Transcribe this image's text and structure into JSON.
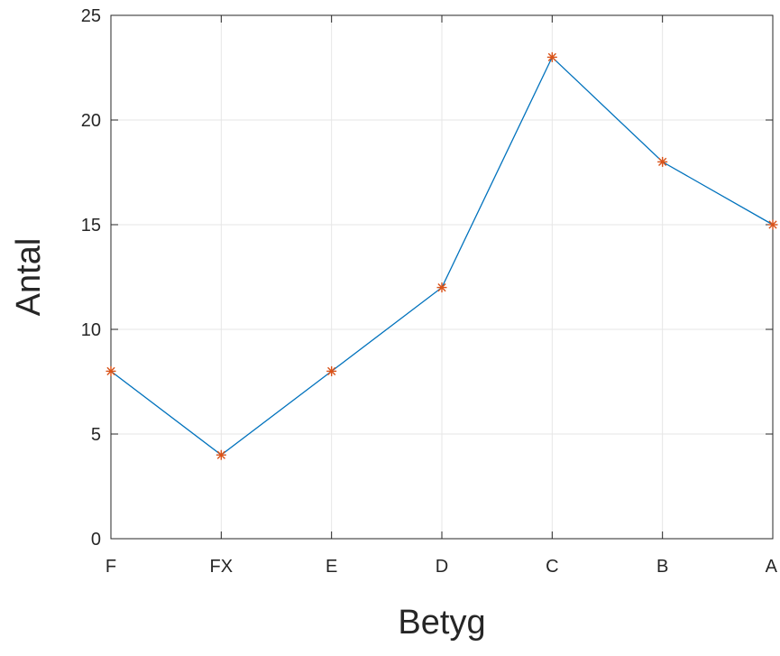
{
  "chart_data": {
    "type": "line",
    "title": "",
    "xlabel": "Betyg",
    "ylabel": "Antal",
    "categories": [
      "F",
      "FX",
      "E",
      "D",
      "C",
      "B",
      "A"
    ],
    "series": [
      {
        "values": [
          8,
          4,
          8,
          12,
          23,
          18,
          15
        ]
      }
    ],
    "ylim": [
      0,
      25
    ],
    "yticks": [
      0,
      5,
      10,
      15,
      20,
      25
    ],
    "grid": true,
    "marker": "asterisk",
    "colors": {
      "line": "#0072BD",
      "marker": "#D95319",
      "grid": "#e6e6e6",
      "axis": "#262626"
    }
  }
}
